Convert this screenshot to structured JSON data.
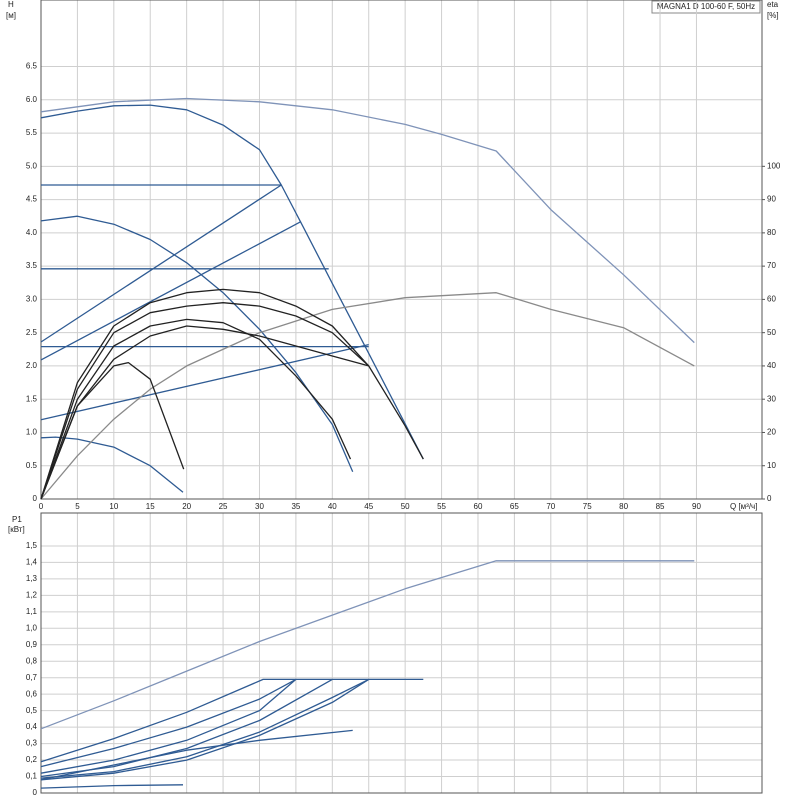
{
  "chart_data": [
    {
      "type": "line",
      "title": "MAGNA1 D 100-60 F, 50Hz",
      "x_label": "Q [м³/ч]",
      "y_label": "H",
      "y_unit": "[м]",
      "y2_label": "eta",
      "y2_unit": "[%]",
      "xlim": [
        0,
        99
      ],
      "xticks": [
        0,
        5,
        10,
        15,
        20,
        25,
        30,
        35,
        40,
        45,
        50,
        55,
        60,
        65,
        70,
        75,
        80,
        85,
        90
      ],
      "ylim": [
        0,
        7.5
      ],
      "yticks": [
        0,
        0.5,
        {
          "value": 1,
          "label": "1.0"
        },
        1.5,
        {
          "value": 2,
          "label": "2.0"
        },
        2.5,
        {
          "value": 3,
          "label": "3.0"
        },
        3.5,
        {
          "value": 4,
          "label": "4.0"
        },
        4.5,
        {
          "value": 5,
          "label": "5.0"
        },
        5.5,
        {
          "value": 6,
          "label": "6.0"
        },
        6.5
      ],
      "y2lim": [
        0,
        150
      ],
      "y2ticks": [
        0,
        10,
        20,
        30,
        40,
        50,
        60,
        70,
        80,
        90,
        100
      ],
      "grid": true,
      "series": [
        {
          "color": "#7f93b8",
          "x": [
            0,
            10,
            20,
            30,
            40,
            50,
            55,
            62.5,
            70,
            80,
            89.7
          ],
          "values": [
            5.82,
            5.97,
            6.02,
            5.97,
            5.85,
            5.63,
            5.48,
            5.23,
            4.35,
            3.37,
            2.35
          ]
        },
        {
          "color": "#2f5b93",
          "x": [
            0,
            5,
            10,
            15,
            20,
            25,
            30,
            33,
            36,
            40,
            45,
            50,
            52.5
          ],
          "values": [
            5.73,
            5.83,
            5.91,
            5.92,
            5.85,
            5.62,
            5.25,
            4.72,
            4.09,
            3.24,
            2.19,
            1.13,
            0.6
          ]
        },
        {
          "color": "#2f5b93",
          "x": [
            0,
            33
          ],
          "values": [
            4.72,
            4.72
          ]
        },
        {
          "color": "#2f5b93",
          "x": [
            0,
            39.5
          ],
          "values": [
            3.46,
            3.46
          ]
        },
        {
          "color": "#2f5b93",
          "x": [
            0,
            45
          ],
          "values": [
            2.29,
            2.29
          ]
        },
        {
          "color": "#2f5b93",
          "x": [
            0,
            33
          ],
          "values": [
            2.36,
            4.72
          ]
        },
        {
          "color": "#2f5b93",
          "x": [
            0,
            35.7
          ],
          "values": [
            2.09,
            4.17
          ]
        },
        {
          "color": "#2f5b93",
          "x": [
            0,
            45
          ],
          "values": [
            1.19,
            2.32
          ]
        },
        {
          "color": "#2f5b93",
          "x": [
            0,
            5,
            10,
            15,
            20,
            25,
            30,
            35,
            40,
            42.8
          ],
          "values": [
            4.18,
            4.25,
            4.13,
            3.9,
            3.55,
            3.1,
            2.55,
            1.9,
            1.12,
            0.41
          ]
        },
        {
          "color": "#2f5b93",
          "x": [
            0,
            2,
            5,
            10,
            15,
            19.5
          ],
          "values": [
            0.92,
            0.93,
            0.9,
            0.78,
            0.5,
            0.1
          ]
        },
        {
          "color": "#8a8a8a",
          "axis": "y2",
          "x": [
            0,
            5,
            10,
            15,
            20,
            30,
            40,
            50,
            62.5,
            70,
            80,
            89.7
          ],
          "values": [
            0,
            13,
            24,
            33,
            40,
            50,
            57,
            60.5,
            62,
            57,
            51.5,
            40
          ]
        },
        {
          "color": "#222222",
          "axis": "y2",
          "x": [
            0,
            5,
            10,
            15,
            20,
            25,
            30,
            35,
            40,
            45,
            50,
            52.5
          ],
          "values": [
            0,
            35,
            52,
            59,
            62,
            63,
            62,
            58,
            52,
            40,
            22,
            12
          ]
        },
        {
          "color": "#222222",
          "axis": "y2",
          "x": [
            0,
            5,
            10,
            15,
            20,
            25,
            30,
            35,
            40,
            45
          ],
          "values": [
            0,
            33,
            50,
            56,
            58,
            59,
            58,
            55,
            50,
            40
          ]
        },
        {
          "color": "#222222",
          "axis": "y2",
          "x": [
            0,
            5,
            10,
            15,
            20,
            25,
            30,
            35,
            40,
            45
          ],
          "values": [
            0,
            28,
            42,
            49,
            52,
            51,
            49,
            46,
            43,
            40
          ]
        },
        {
          "color": "#222222",
          "axis": "y2",
          "x": [
            0,
            5,
            10,
            15,
            20,
            25,
            30,
            35,
            40,
            42.5
          ],
          "values": [
            0,
            30,
            46,
            52,
            54,
            53,
            48,
            37,
            24,
            12
          ]
        },
        {
          "color": "#222222",
          "axis": "y2",
          "x": [
            0,
            5,
            10,
            12,
            15,
            19.6
          ],
          "values": [
            0,
            28,
            40,
            41,
            36,
            9
          ]
        }
      ]
    },
    {
      "type": "line",
      "y_label": "P1",
      "y_unit": "[кВт]",
      "xlim": [
        0,
        99
      ],
      "xticks": [
        0,
        5,
        10,
        15,
        20,
        25,
        30,
        35,
        40,
        45,
        50,
        55,
        60,
        65,
        70,
        75,
        80,
        85,
        90
      ],
      "ylim": [
        0,
        1.7
      ],
      "yticks": [
        0,
        {
          "value": 0.1,
          "label": "0,1"
        },
        {
          "value": 0.2,
          "label": "0,2"
        },
        {
          "value": 0.3,
          "label": "0,3"
        },
        {
          "value": 0.4,
          "label": "0,4"
        },
        {
          "value": 0.5,
          "label": "0,5"
        },
        {
          "value": 0.6,
          "label": "0,6"
        },
        {
          "value": 0.7,
          "label": "0,7"
        },
        {
          "value": 0.8,
          "label": "0,8"
        },
        {
          "value": 0.9,
          "label": "0,9"
        },
        {
          "value": 1,
          "label": "1,0"
        },
        {
          "value": 1.1,
          "label": "1,1"
        },
        {
          "value": 1.2,
          "label": "1,2"
        },
        {
          "value": 1.3,
          "label": "1,3"
        },
        {
          "value": 1.4,
          "label": "1,4"
        },
        {
          "value": 1.5,
          "label": "1,5"
        }
      ],
      "grid": true,
      "series": [
        {
          "color": "#7f93b8",
          "x": [
            0,
            10,
            20,
            30,
            40,
            50,
            62.5,
            89.7
          ],
          "values": [
            0.39,
            0.56,
            0.74,
            0.92,
            1.08,
            1.24,
            1.41,
            1.41
          ]
        },
        {
          "color": "#2f5b93",
          "x": [
            0,
            10,
            20,
            30.5,
            52.5
          ],
          "values": [
            0.19,
            0.33,
            0.49,
            0.69,
            0.69
          ]
        },
        {
          "color": "#2f5b93",
          "x": [
            0,
            10,
            20,
            30,
            35
          ],
          "values": [
            0.16,
            0.27,
            0.4,
            0.57,
            0.69
          ]
        },
        {
          "color": "#2f5b93",
          "x": [
            0,
            10,
            20,
            30,
            35
          ],
          "values": [
            0.12,
            0.2,
            0.32,
            0.5,
            0.69
          ]
        },
        {
          "color": "#2f5b93",
          "x": [
            0,
            10,
            20,
            30,
            40
          ],
          "values": [
            0.1,
            0.16,
            0.27,
            0.44,
            0.69
          ]
        },
        {
          "color": "#2f5b93",
          "x": [
            0,
            10,
            20,
            30,
            40,
            45
          ],
          "values": [
            0.08,
            0.12,
            0.2,
            0.35,
            0.55,
            0.69
          ]
        },
        {
          "color": "#2f5b93",
          "x": [
            0,
            10,
            20,
            30,
            40,
            45
          ],
          "values": [
            0.09,
            0.13,
            0.22,
            0.37,
            0.58,
            0.69
          ]
        },
        {
          "color": "#2f5b93",
          "x": [
            0,
            10,
            20,
            30,
            42.8
          ],
          "values": [
            0.08,
            0.17,
            0.26,
            0.32,
            0.38
          ]
        },
        {
          "color": "#2f5b93",
          "x": [
            0,
            10,
            19.5
          ],
          "values": [
            0.03,
            0.045,
            0.05
          ]
        }
      ]
    }
  ]
}
